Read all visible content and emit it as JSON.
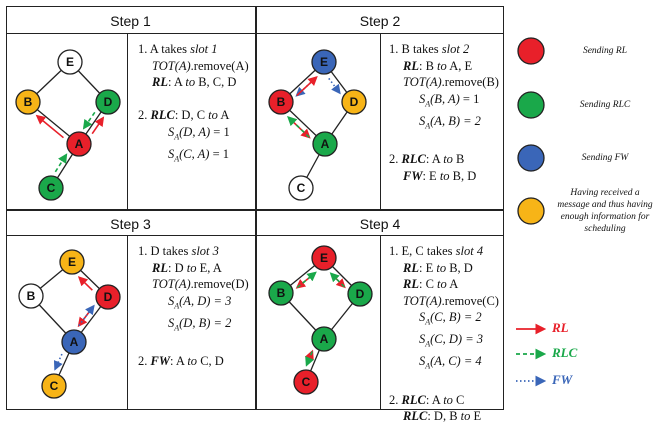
{
  "colors": {
    "red": "#e8202a",
    "green": "#1aa84a",
    "blue": "#3a66b8",
    "yellow": "#f7b417",
    "white": "#ffffff",
    "edge": "#222222"
  },
  "steps": [
    {
      "title": "Step 1",
      "lines": [
        {
          "runs": [
            {
              "t": "1. A takes ",
              "s": ""
            },
            {
              "t": "slot 1",
              "s": "it"
            }
          ],
          "indent": 0
        },
        {
          "runs": [
            {
              "t": "TOT(A)",
              "s": "it"
            },
            {
              "t": ".remove(A)",
              "s": ""
            }
          ],
          "indent": 1
        },
        {
          "runs": [
            {
              "t": "RL",
              "s": "bi"
            },
            {
              "t": ": A ",
              "s": ""
            },
            {
              "t": "to",
              "s": "it"
            },
            {
              "t": " B, C, D",
              "s": ""
            }
          ],
          "indent": 1
        },
        {
          "runs": [
            {
              "t": "",
              "s": ""
            }
          ],
          "indent": 0
        },
        {
          "runs": [
            {
              "t": "2. ",
              "s": ""
            },
            {
              "t": "RLC",
              "s": "bi"
            },
            {
              "t": ": D, C ",
              "s": ""
            },
            {
              "t": "to",
              "s": "it"
            },
            {
              "t": " A",
              "s": ""
            }
          ],
          "indent": 0
        },
        {
          "runs": [
            {
              "t": "S",
              "s": "it"
            },
            {
              "t": "A",
              "s": "sub"
            },
            {
              "t": "(D, A)",
              "s": "it"
            },
            {
              "t": " = 1",
              "s": ""
            }
          ],
          "indent": 2
        },
        {
          "runs": [
            {
              "t": "S",
              "s": "it"
            },
            {
              "t": "A",
              "s": "sub"
            },
            {
              "t": "(C, A)",
              "s": "it"
            },
            {
              "t": " = 1",
              "s": ""
            }
          ],
          "indent": 2
        }
      ]
    },
    {
      "title": "Step 2",
      "lines": [
        {
          "runs": [
            {
              "t": "1. B takes ",
              "s": ""
            },
            {
              "t": "slot 2",
              "s": "it"
            }
          ],
          "indent": 0
        },
        {
          "runs": [
            {
              "t": "RL",
              "s": "bi"
            },
            {
              "t": ": B ",
              "s": ""
            },
            {
              "t": "to",
              "s": "it"
            },
            {
              "t": " A, E",
              "s": ""
            }
          ],
          "indent": 1
        },
        {
          "runs": [
            {
              "t": "TOT(A)",
              "s": "it"
            },
            {
              "t": ".remove(B)",
              "s": ""
            }
          ],
          "indent": 1
        },
        {
          "runs": [
            {
              "t": "S",
              "s": "it"
            },
            {
              "t": "A",
              "s": "sub"
            },
            {
              "t": "(B, A)",
              "s": "it"
            },
            {
              "t": " = 1",
              "s": ""
            }
          ],
          "indent": 2
        },
        {
          "runs": [
            {
              "t": "S",
              "s": "it"
            },
            {
              "t": "A",
              "s": "sub"
            },
            {
              "t": "(A, B) = 2",
              "s": "it"
            }
          ],
          "indent": 2
        },
        {
          "runs": [
            {
              "t": "",
              "s": ""
            }
          ],
          "indent": 0
        },
        {
          "runs": [
            {
              "t": "2. ",
              "s": ""
            },
            {
              "t": "RLC",
              "s": "bi"
            },
            {
              "t": ": A ",
              "s": ""
            },
            {
              "t": "to",
              "s": "it"
            },
            {
              "t": " B",
              "s": ""
            }
          ],
          "indent": 0
        },
        {
          "runs": [
            {
              "t": "FW",
              "s": "bi"
            },
            {
              "t": ": E ",
              "s": ""
            },
            {
              "t": "to",
              "s": "it"
            },
            {
              "t": " B, D",
              "s": ""
            }
          ],
          "indent": 1
        }
      ]
    },
    {
      "title": "Step 3",
      "lines": [
        {
          "runs": [
            {
              "t": "1. D takes ",
              "s": ""
            },
            {
              "t": "slot 3",
              "s": "it"
            }
          ],
          "indent": 0
        },
        {
          "runs": [
            {
              "t": "RL",
              "s": "bi"
            },
            {
              "t": ": D ",
              "s": ""
            },
            {
              "t": "to",
              "s": "it"
            },
            {
              "t": " E, A",
              "s": ""
            }
          ],
          "indent": 1
        },
        {
          "runs": [
            {
              "t": "TOT(A)",
              "s": "it"
            },
            {
              "t": ".remove(D)",
              "s": ""
            }
          ],
          "indent": 1
        },
        {
          "runs": [
            {
              "t": "S",
              "s": "it"
            },
            {
              "t": "A",
              "s": "sub"
            },
            {
              "t": "(A, D) = 3",
              "s": "it"
            }
          ],
          "indent": 2
        },
        {
          "runs": [
            {
              "t": "S",
              "s": "it"
            },
            {
              "t": "A",
              "s": "sub"
            },
            {
              "t": "(D, B) = 2",
              "s": "it"
            }
          ],
          "indent": 2
        },
        {
          "runs": [
            {
              "t": "",
              "s": ""
            }
          ],
          "indent": 0
        },
        {
          "runs": [
            {
              "t": "2. ",
              "s": ""
            },
            {
              "t": "FW",
              "s": "bi"
            },
            {
              "t": ": A ",
              "s": ""
            },
            {
              "t": "to",
              "s": "it"
            },
            {
              "t": " C, D",
              "s": ""
            }
          ],
          "indent": 0
        }
      ]
    },
    {
      "title": "Step 4",
      "lines": [
        {
          "runs": [
            {
              "t": "1. E, C takes ",
              "s": ""
            },
            {
              "t": "slot 4",
              "s": "it"
            }
          ],
          "indent": 0
        },
        {
          "runs": [
            {
              "t": "RL",
              "s": "bi"
            },
            {
              "t": ": E ",
              "s": ""
            },
            {
              "t": "to",
              "s": "it"
            },
            {
              "t": " B, D",
              "s": ""
            }
          ],
          "indent": 1
        },
        {
          "runs": [
            {
              "t": "RL",
              "s": "bi"
            },
            {
              "t": ": C ",
              "s": ""
            },
            {
              "t": "to",
              "s": "it"
            },
            {
              "t": " A",
              "s": ""
            }
          ],
          "indent": 1
        },
        {
          "runs": [
            {
              "t": "TOT(A)",
              "s": "it"
            },
            {
              "t": ".remove(C)",
              "s": ""
            }
          ],
          "indent": 1
        },
        {
          "runs": [
            {
              "t": "S",
              "s": "it"
            },
            {
              "t": "A",
              "s": "sub"
            },
            {
              "t": "(C, B) = 2",
              "s": "it"
            }
          ],
          "indent": 2
        },
        {
          "runs": [
            {
              "t": "S",
              "s": "it"
            },
            {
              "t": "A",
              "s": "sub"
            },
            {
              "t": "(C, D) = 3",
              "s": "it"
            }
          ],
          "indent": 2
        },
        {
          "runs": [
            {
              "t": "S",
              "s": "it"
            },
            {
              "t": "A",
              "s": "sub"
            },
            {
              "t": "(A, C) = 4",
              "s": "it"
            }
          ],
          "indent": 2
        },
        {
          "runs": [
            {
              "t": "",
              "s": ""
            }
          ],
          "indent": 0
        },
        {
          "runs": [
            {
              "t": "2. ",
              "s": ""
            },
            {
              "t": "RLC",
              "s": "bi"
            },
            {
              "t": ": A ",
              "s": ""
            },
            {
              "t": "to",
              "s": "it"
            },
            {
              "t": " C",
              "s": ""
            }
          ],
          "indent": 0
        },
        {
          "runs": [
            {
              "t": "RLC",
              "s": "bi"
            },
            {
              "t": ": D, B ",
              "s": ""
            },
            {
              "t": "to",
              "s": "it"
            },
            {
              "t": " E",
              "s": ""
            }
          ],
          "indent": 1
        }
      ]
    }
  ],
  "node_labels": [
    "A",
    "B",
    "C",
    "D",
    "E"
  ],
  "legend": {
    "nodes": [
      {
        "color": "red",
        "text": "Sending RL"
      },
      {
        "color": "green",
        "text": "Sending RLC"
      },
      {
        "color": "blue",
        "text": "Sending FW"
      },
      {
        "color": "yellow",
        "text": "Having received a message and thus having enough information for scheduling"
      }
    ],
    "arrows": [
      {
        "label": "RL",
        "color": "red",
        "style": "solid"
      },
      {
        "label": "RLC",
        "color": "green",
        "style": "dashed"
      },
      {
        "label": "FW",
        "color": "blue",
        "style": "dotted"
      }
    ]
  }
}
